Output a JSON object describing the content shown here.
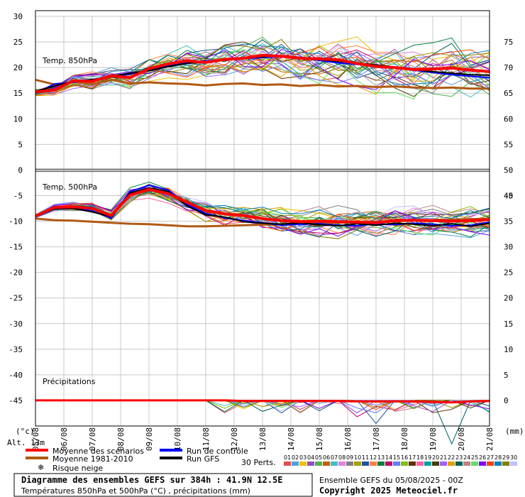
{
  "chart_data": {
    "type": "line",
    "title": "Diagramme des ensembles GEFS sur 384h : 41.9N 12.5E",
    "subtitle": "Températures 850hPa et 500hPa (°C) , précipitations (mm)",
    "run_info": "Ensemble GEFS du 05/08/2025 - 00Z",
    "copyright": "Copyright 2025 Meteociel.fr",
    "altitude": "Alt. 13m",
    "left_unit": "(°c)",
    "right_unit": "(mm)",
    "left_ticks": [
      30,
      25,
      20,
      15,
      10,
      5,
      0,
      -5,
      -10,
      -15,
      -20,
      -25,
      -30,
      -35,
      -40,
      -45
    ],
    "right_ticks_top": [
      75,
      70,
      65,
      60,
      55,
      50,
      45
    ],
    "right_ticks_bottom": [
      40,
      35,
      30,
      25,
      20,
      15,
      10,
      5,
      0
    ],
    "ylim": [
      -50,
      30
    ],
    "x_dates": [
      "06/08",
      "07/08",
      "08/08",
      "09/08",
      "10/08",
      "11/08",
      "12/08",
      "13/08",
      "14/08",
      "15/08",
      "16/08",
      "17/08",
      "18/08",
      "19/08",
      "20/08",
      "21/08"
    ],
    "x_start_label": "05/08",
    "panels": [
      {
        "label": "Temp. 850hPa"
      },
      {
        "label": "Temp. 500hPa"
      },
      {
        "label": "Précipitations"
      }
    ],
    "series": [
      {
        "name": "Moyenne des scénarios",
        "color": "#ff0000",
        "t850": [
          15.2,
          15.6,
          17.4,
          17.3,
          18.4,
          18.0,
          19.8,
          20.7,
          21.3,
          21.0,
          21.6,
          21.8,
          22.4,
          22.2,
          21.8,
          21.7,
          21.5,
          20.8,
          20.2,
          20.0,
          19.6,
          19.7,
          19.9,
          19.5,
          19.2
        ],
        "t500": [
          -9.0,
          -7.3,
          -7.2,
          -7.5,
          -8.9,
          -4.9,
          -3.8,
          -4.6,
          -6.3,
          -7.9,
          -8.6,
          -8.9,
          -9.5,
          -9.9,
          -10.1,
          -10.0,
          -10.1,
          -10.2,
          -10.3,
          -9.9,
          -9.8,
          -9.9,
          -10.0,
          -9.9,
          -9.7
        ],
        "precip": [
          0,
          0,
          0,
          0,
          0,
          0,
          0,
          0,
          0,
          0,
          0,
          0.1,
          0.1,
          0.1,
          0.1,
          0.1,
          0.1,
          0.2,
          0.2,
          0.2,
          0.2,
          0.3,
          0.4,
          0.2,
          0.1
        ]
      },
      {
        "name": "Moyenne 1981-2010",
        "color": "#b05a14",
        "t850": [
          17.6,
          16.7,
          17.2,
          16.8,
          17.6,
          16.9,
          17.1,
          16.9,
          16.8,
          16.5,
          16.8,
          16.9,
          16.6,
          16.7,
          16.4,
          16.6,
          16.3,
          16.4,
          16.2,
          16.3,
          16.1,
          16.0,
          16.1,
          15.9,
          15.9
        ],
        "t500": [
          -9.5,
          -9.8,
          -9.9,
          -10.1,
          -10.3,
          -10.5,
          -10.6,
          -10.8,
          -11.0,
          -11.0,
          -10.9,
          -10.8,
          -10.7,
          -10.6,
          -10.5,
          -10.4,
          -10.3,
          -10.2,
          -10.1,
          -10.0,
          -9.9,
          -9.8,
          -9.7,
          -9.6,
          -9.5
        ]
      },
      {
        "name": "Run de contrôle",
        "color": "#0000ff",
        "t850": [
          15.0,
          16.8,
          17.1,
          17.6,
          18.2,
          18.7,
          19.6,
          20.3,
          21.0,
          21.3,
          21.5,
          21.7,
          22.0,
          22.1,
          21.9,
          21.4,
          20.9,
          20.6,
          20.4,
          20.0,
          19.5,
          19.0,
          18.6,
          18.3,
          18.0
        ],
        "t500": [
          -9.2,
          -7.5,
          -7.4,
          -8.0,
          -9.4,
          -4.2,
          -3.0,
          -3.9,
          -6.7,
          -8.5,
          -9.4,
          -9.9,
          -10.3,
          -10.8,
          -10.6,
          -10.5,
          -10.8,
          -10.9,
          -10.5,
          -10.7,
          -10.4,
          -10.6,
          -10.9,
          -10.8,
          -10.2
        ]
      },
      {
        "name": "Run GFS",
        "color": "#000000",
        "t850": [
          15.3,
          16.4,
          17.3,
          17.6,
          18.3,
          18.9,
          19.4,
          20.2,
          20.8,
          21.1,
          21.4,
          21.9,
          22.1,
          22.3,
          22.0,
          21.6,
          21.2,
          20.9,
          20.5,
          20.1,
          19.6,
          19.2,
          18.9,
          18.6,
          18.5
        ],
        "t500": [
          -9.0,
          -7.6,
          -7.5,
          -8.2,
          -9.1,
          -4.5,
          -3.5,
          -4.2,
          -7.0,
          -8.8,
          -9.2,
          -10.1,
          -10.4,
          -10.6,
          -10.3,
          -10.7,
          -10.9,
          -10.5,
          -10.8,
          -10.4,
          -10.6,
          -10.9,
          -10.5,
          -11.0,
          -10.4
        ]
      }
    ],
    "members": {
      "count_label": "30 Perts.",
      "ids": [
        "01",
        "02",
        "03",
        "04",
        "05",
        "06",
        "07",
        "08",
        "09",
        "10",
        "11",
        "12",
        "13",
        "14",
        "15",
        "16",
        "17",
        "18",
        "19",
        "20",
        "21",
        "22",
        "23",
        "24",
        "25",
        "26",
        "27",
        "28",
        "29",
        "30"
      ],
      "colors": [
        "#e05050",
        "#50a0e0",
        "#f0c000",
        "#9050c0",
        "#50b050",
        "#c06000",
        "#40c0c0",
        "#e080e0",
        "#808080",
        "#a0a000",
        "#2050a0",
        "#ff8040",
        "#008040",
        "#c00060",
        "#6080ff",
        "#80c000",
        "#603000",
        "#ff60a0",
        "#00a0a0",
        "#404000",
        "#a060ff",
        "#e0a000",
        "#006060",
        "#c08080",
        "#60e060",
        "#8000ff",
        "#ff4000",
        "#0080c0",
        "#808000",
        "#c0c0ff"
      ],
      "spread_850": 2.3,
      "spread_500": 1.4
    },
    "legend": {
      "mean": "Moyenne des scénarios",
      "clim": "Moyenne 1981-2010",
      "control": "Run de contrôle",
      "gfs": "Run GFS",
      "snow": "Risque neige"
    },
    "grid": true
  }
}
